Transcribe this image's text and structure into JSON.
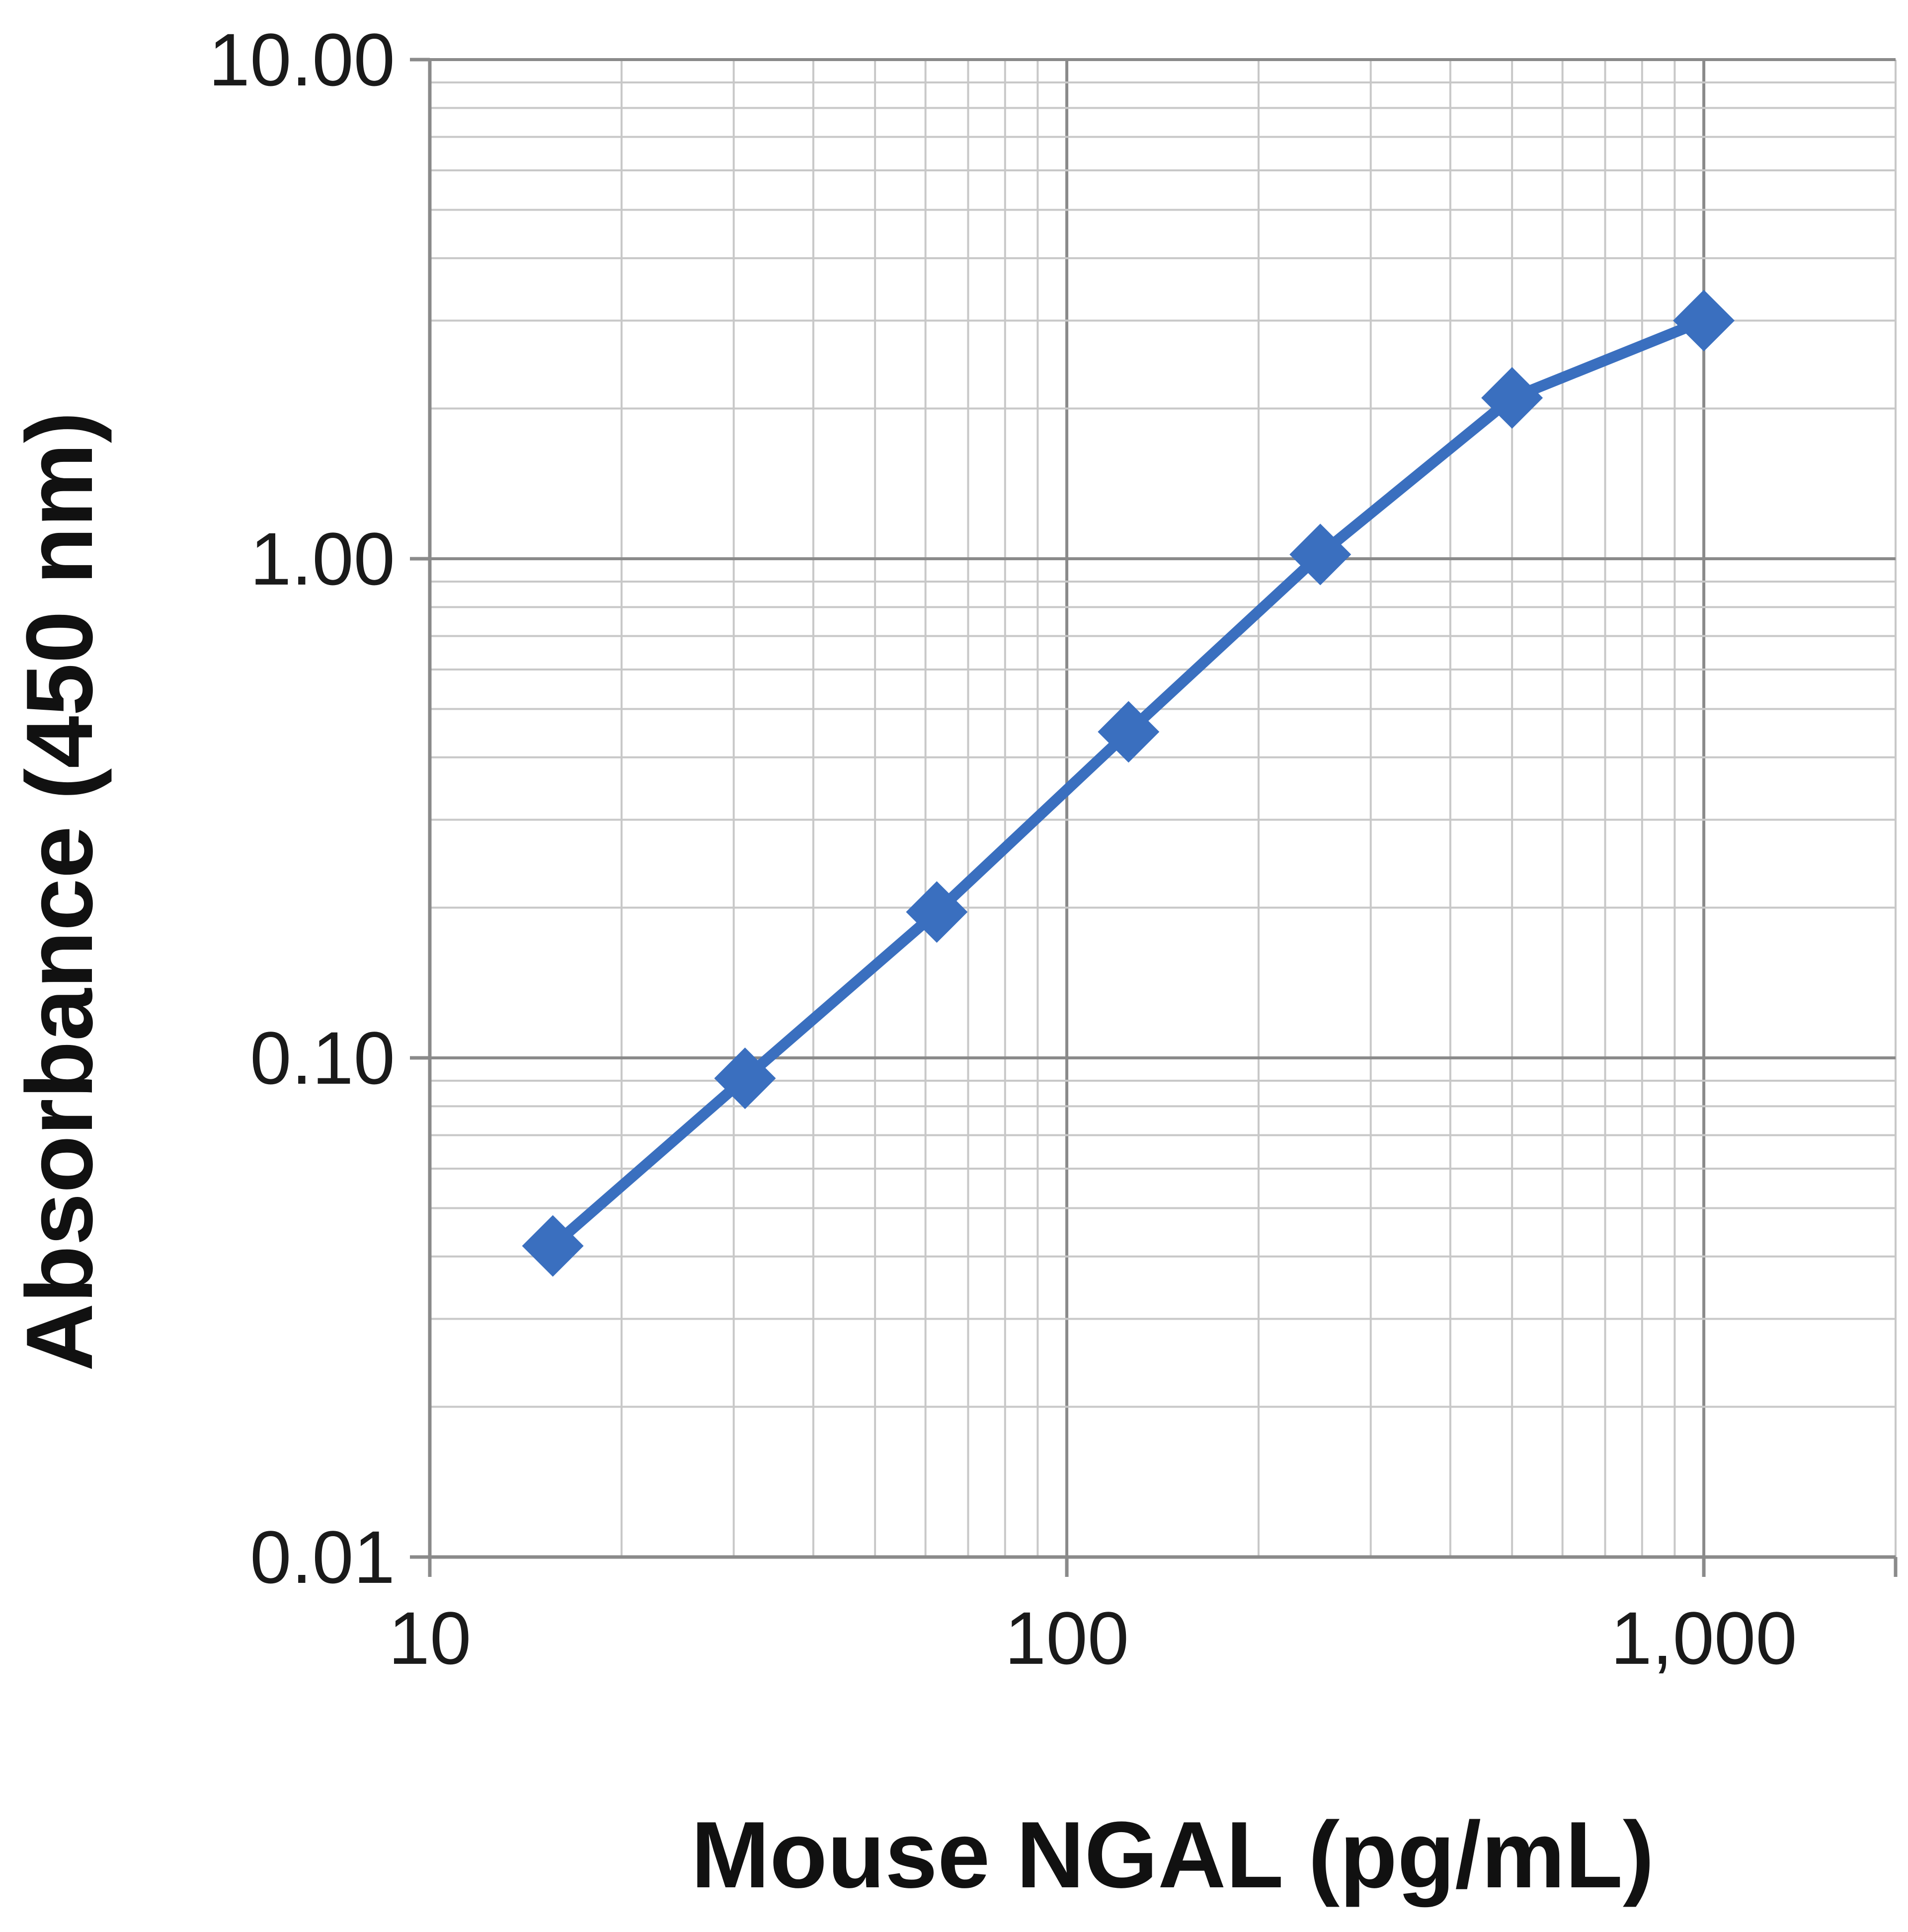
{
  "chart_data": {
    "type": "line",
    "title": "",
    "xlabel": "Mouse NGAL (pg/mL)",
    "ylabel": "Absorbance  (450 nm)",
    "x_scale": "log",
    "y_scale": "log",
    "xlim": [
      10,
      2000
    ],
    "ylim": [
      0.01,
      10
    ],
    "x_ticks": [
      10,
      100,
      1000
    ],
    "x_tick_labels": [
      "10",
      "100",
      "1,000"
    ],
    "y_ticks": [
      0.01,
      0.1,
      1,
      10
    ],
    "y_tick_labels": [
      "0.01",
      "0.10",
      "1.00",
      "10.00"
    ],
    "grid": true,
    "legend": "none",
    "series": [
      {
        "color": "#3a6fbf",
        "marker": "diamond",
        "x": [
          15.6,
          31.25,
          62.5,
          125,
          250,
          500,
          1000
        ],
        "y": [
          0.042,
          0.091,
          0.196,
          0.45,
          1.02,
          2.1,
          3.0
        ]
      }
    ]
  }
}
